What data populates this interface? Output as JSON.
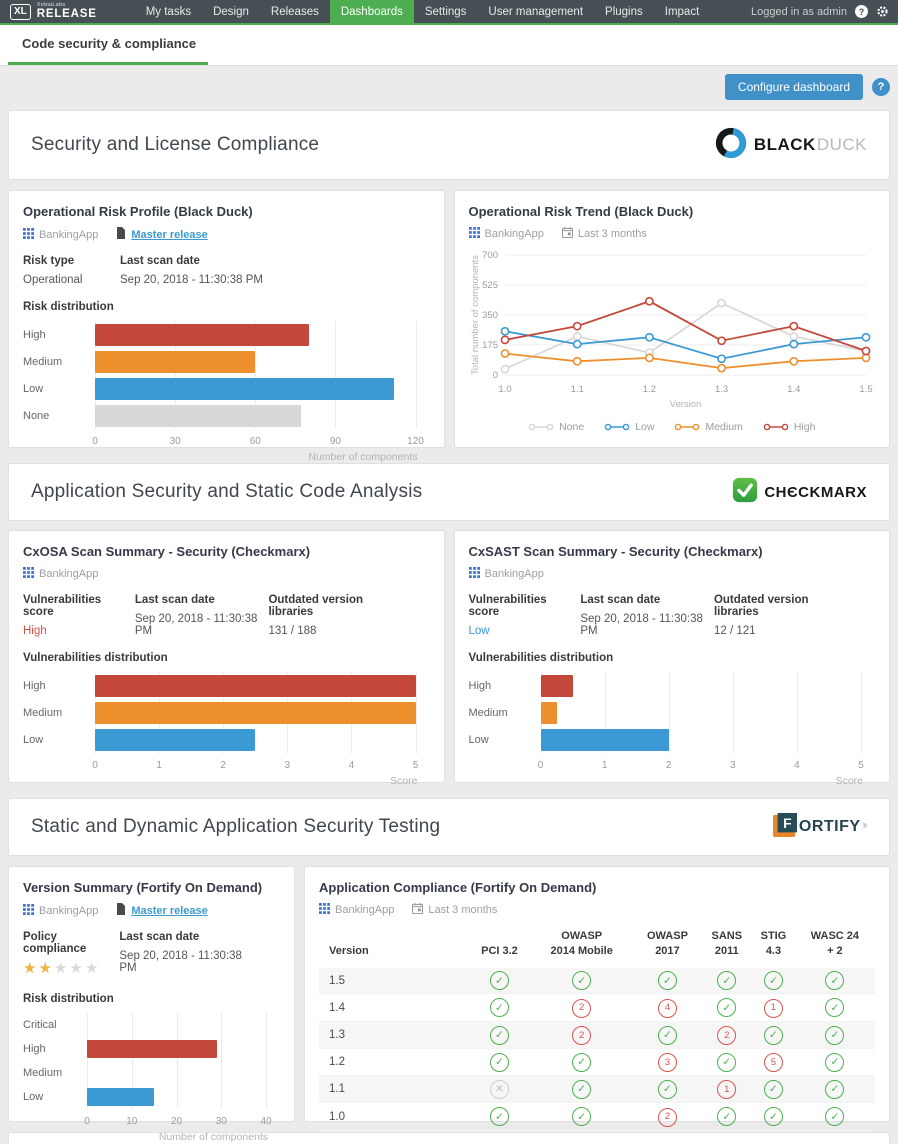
{
  "nav": {
    "logo_text": "XL",
    "company": "XebiaLabs",
    "product": "RELEASE",
    "items": [
      {
        "label": "My tasks",
        "active": false
      },
      {
        "label": "Design",
        "active": false
      },
      {
        "label": "Releases",
        "active": false
      },
      {
        "label": "Dashboards",
        "active": true
      },
      {
        "label": "Settings",
        "active": false
      },
      {
        "label": "User management",
        "active": false
      },
      {
        "label": "Plugins",
        "active": false
      },
      {
        "label": "Impact",
        "active": false
      }
    ],
    "user_status": "Logged in as admin",
    "help_glyph": "?"
  },
  "tab": {
    "label": "Code security & compliance"
  },
  "toolbar": {
    "configure_label": "Configure dashboard",
    "help_glyph": "?"
  },
  "colors": {
    "accent_green": "#4cae50",
    "accent_blue": "#4191c9",
    "bar_red": "#c4483a",
    "bar_orange": "#ee8f2e",
    "bar_blue": "#3b99d4",
    "bar_gray": "#d8d8d8",
    "status_pass": "#4cb050",
    "status_fail": "#d9534f",
    "status_na": "#cecece"
  },
  "sections": [
    {
      "title": "Security and License Compliance",
      "vendor": "Black Duck",
      "logo_black": "BLACK",
      "logo_duck": "DUCK"
    },
    {
      "title": "Application Security and Static Code Analysis",
      "vendor": "Checkmarx",
      "logo_text": "CHЄCKMARX"
    },
    {
      "title": "Static and Dynamic Application Security Testing",
      "vendor": "Fortify",
      "logo_f": "F",
      "logo_rest": "ORTIFY"
    }
  ],
  "panels": {
    "risk_profile": {
      "title": "Operational Risk Profile (Black Duck)",
      "app": "BankingApp",
      "release_link": "Master release",
      "fields": [
        {
          "label": "Risk type",
          "value": "Operational"
        },
        {
          "label": "Last scan date",
          "value": "Sep 20, 2018 - 11:30:38 PM"
        }
      ],
      "chart_label": "Risk distribution"
    },
    "risk_trend": {
      "title": "Operational Risk Trend (Black Duck)",
      "app": "BankingApp",
      "period": "Last 3 months"
    },
    "cxosa": {
      "title": "CxOSA Scan Summary - Security (Checkmarx)",
      "app": "BankingApp",
      "fields": [
        {
          "label": "Vulnerabilities score",
          "value": "High",
          "value_color": "#cf5243"
        },
        {
          "label": "Last scan date",
          "value": "Sep 20, 2018 - 11:30:38 PM"
        },
        {
          "label": "Outdated version libraries",
          "value": "131 / 188"
        }
      ],
      "chart_label": "Vulnerabilities distribution"
    },
    "cxsast": {
      "title": "CxSAST Scan Summary - Security (Checkmarx)",
      "app": "BankingApp",
      "fields": [
        {
          "label": "Vulnerabilities score",
          "value": "Low",
          "value_color": "#3b99d4"
        },
        {
          "label": "Last scan date",
          "value": "Sep 20, 2018 - 11:30:38 PM"
        },
        {
          "label": "Outdated version libraries",
          "value": "12 / 121"
        }
      ],
      "chart_label": "Vulnerabilities distribution"
    },
    "version_summary": {
      "title": "Version Summary (Fortify On Demand)",
      "app": "BankingApp",
      "release_link": "Master release",
      "policy_label": "Policy compliance",
      "stars": 2,
      "stars_total": 5,
      "date_label": "Last scan date",
      "date_value": "Sep 20, 2018 - 11:30:38 PM",
      "chart_label": "Risk distribution"
    },
    "app_compliance": {
      "title": "Application Compliance (Fortify On Demand)",
      "app": "BankingApp",
      "period": "Last 3 months"
    }
  },
  "chart_data": [
    {
      "id": "risk_profile",
      "type": "bar",
      "orientation": "horizontal",
      "categories": [
        "High",
        "Medium",
        "Low",
        "None"
      ],
      "values": [
        80,
        60,
        112,
        77
      ],
      "colors": [
        "#c4483a",
        "#ee8f2e",
        "#3b99d4",
        "#d8d8d8"
      ],
      "xticks": [
        0,
        30,
        60,
        90,
        120
      ],
      "xlim": [
        0,
        120
      ],
      "xlabel": "Number of components",
      "grid": true
    },
    {
      "id": "risk_trend",
      "type": "line",
      "x": [
        "1.0",
        "1.1",
        "1.2",
        "1.3",
        "1.4",
        "1.5"
      ],
      "series": [
        {
          "name": "None",
          "color": "#d8d8d8",
          "values": [
            35,
            225,
            130,
            420,
            225,
            140
          ]
        },
        {
          "name": "Low",
          "color": "#3b99d4",
          "values": [
            255,
            180,
            220,
            95,
            180,
            220
          ]
        },
        {
          "name": "Medium",
          "color": "#ee8f2e",
          "values": [
            125,
            80,
            100,
            40,
            80,
            100
          ]
        },
        {
          "name": "High",
          "color": "#c4483a",
          "values": [
            205,
            285,
            430,
            200,
            285,
            140
          ]
        }
      ],
      "yticks": [
        0,
        175,
        350,
        525,
        700
      ],
      "ylim": [
        0,
        700
      ],
      "xlabel": "Version",
      "ylabel": "Total number of components",
      "legend_position": "bottom",
      "grid": true
    },
    {
      "id": "cxosa",
      "type": "bar",
      "orientation": "horizontal",
      "categories": [
        "High",
        "Medium",
        "Low"
      ],
      "values": [
        5,
        5,
        2.5
      ],
      "colors": [
        "#c4483a",
        "#ee8f2e",
        "#3b99d4"
      ],
      "xticks": [
        0,
        1,
        2,
        3,
        4,
        5
      ],
      "xlim": [
        0,
        5
      ],
      "xlabel": "Score",
      "grid": true
    },
    {
      "id": "cxsast",
      "type": "bar",
      "orientation": "horizontal",
      "categories": [
        "High",
        "Medium",
        "Low"
      ],
      "values": [
        0.5,
        0.25,
        2
      ],
      "colors": [
        "#c4483a",
        "#ee8f2e",
        "#3b99d4"
      ],
      "xticks": [
        0,
        1,
        2,
        3,
        4,
        5
      ],
      "xlim": [
        0,
        5
      ],
      "xlabel": "Score",
      "grid": true
    },
    {
      "id": "version_summary",
      "type": "bar",
      "orientation": "horizontal",
      "categories": [
        "Critical",
        "High",
        "Medium",
        "Low"
      ],
      "values": [
        0,
        29,
        0,
        15
      ],
      "colors": [
        "#a94442",
        "#c4483a",
        "#ee8f2e",
        "#3b99d4"
      ],
      "xticks": [
        0,
        10,
        20,
        30,
        40
      ],
      "xlim": [
        0,
        40
      ],
      "xlabel": "Number of components",
      "grid": true
    },
    {
      "id": "app_compliance",
      "type": "table",
      "version_header": "Version",
      "columns": [
        "PCI 3.2",
        "OWASP\n2014 Mobile",
        "OWASP\n2017",
        "SANS\n2011",
        "STIG\n4.3",
        "WASC 24\n+ 2"
      ],
      "rows": [
        {
          "version": "1.5",
          "cells": [
            {
              "status": "pass"
            },
            {
              "status": "pass"
            },
            {
              "status": "pass"
            },
            {
              "status": "pass"
            },
            {
              "status": "pass"
            },
            {
              "status": "pass"
            }
          ]
        },
        {
          "version": "1.4",
          "cells": [
            {
              "status": "pass"
            },
            {
              "status": "fail",
              "count": 2
            },
            {
              "status": "fail",
              "count": 4
            },
            {
              "status": "pass"
            },
            {
              "status": "fail",
              "count": 1
            },
            {
              "status": "pass"
            }
          ]
        },
        {
          "version": "1.3",
          "cells": [
            {
              "status": "pass"
            },
            {
              "status": "fail",
              "count": 2
            },
            {
              "status": "pass"
            },
            {
              "status": "fail",
              "count": 2
            },
            {
              "status": "pass"
            },
            {
              "status": "pass"
            }
          ]
        },
        {
          "version": "1.2",
          "cells": [
            {
              "status": "pass"
            },
            {
              "status": "pass"
            },
            {
              "status": "fail",
              "count": 3
            },
            {
              "status": "pass"
            },
            {
              "status": "fail",
              "count": 5
            },
            {
              "status": "pass"
            }
          ]
        },
        {
          "version": "1.1",
          "cells": [
            {
              "status": "na"
            },
            {
              "status": "pass"
            },
            {
              "status": "pass"
            },
            {
              "status": "fail",
              "count": 1
            },
            {
              "status": "pass"
            },
            {
              "status": "pass"
            }
          ]
        },
        {
          "version": "1.0",
          "cells": [
            {
              "status": "pass"
            },
            {
              "status": "pass"
            },
            {
              "status": "fail",
              "count": 2
            },
            {
              "status": "pass"
            },
            {
              "status": "pass"
            },
            {
              "status": "pass"
            }
          ]
        }
      ]
    }
  ]
}
